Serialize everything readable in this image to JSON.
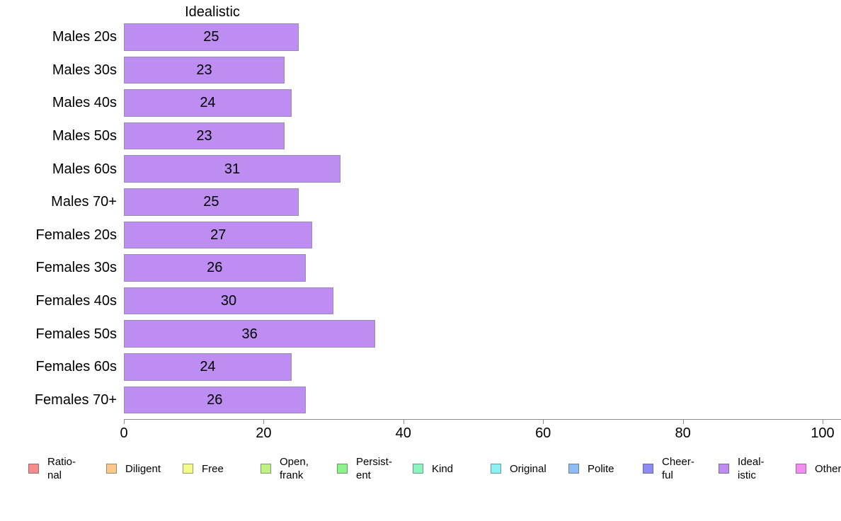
{
  "chart_data": {
    "type": "bar",
    "orientation": "horizontal",
    "title": "Idealistic",
    "categories": [
      "Males 20s",
      "Males 30s",
      "Males 40s",
      "Males 50s",
      "Males 60s",
      "Males 70+",
      "Females 20s",
      "Females 30s",
      "Females 40s",
      "Females 50s",
      "Females 60s",
      "Females 70+"
    ],
    "values": [
      25,
      23,
      24,
      23,
      31,
      25,
      27,
      26,
      30,
      36,
      24,
      26
    ],
    "bar_labels": [
      "25",
      "23",
      "24",
      "23",
      "31",
      "25",
      "27",
      "26",
      "30",
      "36",
      "24",
      "26"
    ],
    "xlim": [
      0,
      100
    ],
    "x_ticks": [
      "0",
      "20",
      "40",
      "60",
      "80",
      "100"
    ],
    "x_tick_values": [
      0,
      20,
      40,
      60,
      80,
      100
    ],
    "grid": false,
    "bar_color": "#bd8df2",
    "legend_position": "bottom"
  },
  "legend": {
    "items": [
      {
        "label": "Ratio-\nnal",
        "color": "#f68c8c"
      },
      {
        "label": "Diligent",
        "color": "#fac98a"
      },
      {
        "label": "Free",
        "color": "#f4f98b"
      },
      {
        "label": "Open,\nfrank",
        "color": "#bdf285"
      },
      {
        "label": "Persist-\nent",
        "color": "#8cf28c"
      },
      {
        "label": "Kind",
        "color": "#8df3c1"
      },
      {
        "label": "Original",
        "color": "#8bf1f3"
      },
      {
        "label": "Polite",
        "color": "#8dbbf4"
      },
      {
        "label": "Cheer-\nful",
        "color": "#8c8cf2"
      },
      {
        "label": "Ideal-\nistic",
        "color": "#bd8df2"
      },
      {
        "label": "Other",
        "color": "#f48df2"
      }
    ]
  }
}
